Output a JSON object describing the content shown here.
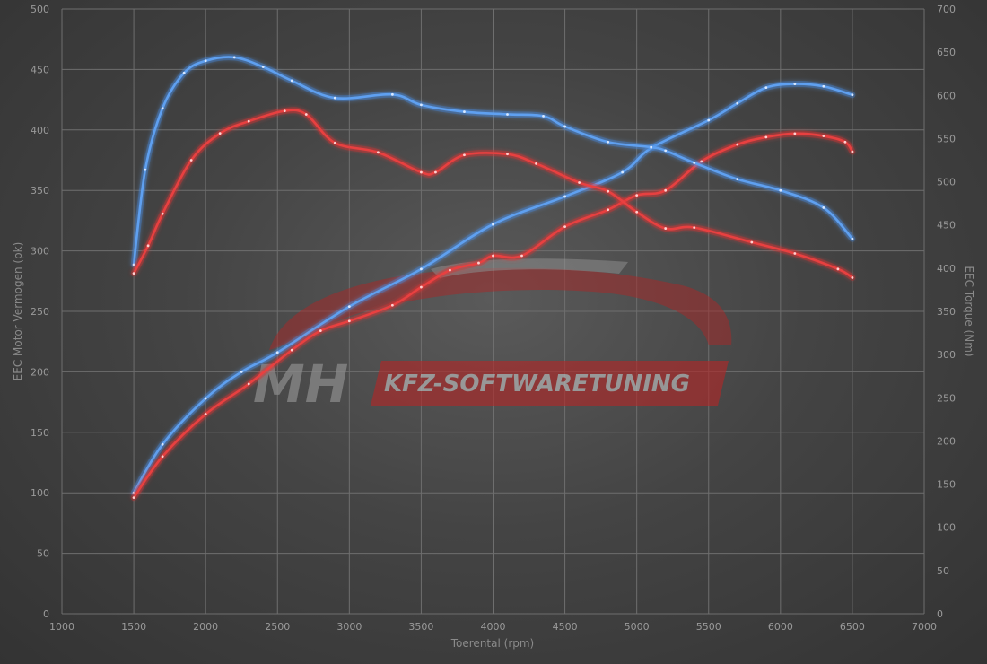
{
  "chart_data": {
    "type": "line",
    "xlabel": "Toerental (rpm)",
    "ylabel": "EEC Motor Vermogen (pk)",
    "ylabel_right": "EEC Torque (Nm)",
    "xlim": [
      1000,
      7000
    ],
    "ylim": [
      0,
      500
    ],
    "ylim_right": [
      0,
      700
    ],
    "x_ticks": [
      1000,
      1500,
      2000,
      2500,
      3000,
      3500,
      4000,
      4500,
      5000,
      5500,
      6000,
      6500,
      7000
    ],
    "y_ticks": [
      0,
      50,
      100,
      150,
      200,
      250,
      300,
      350,
      400,
      450,
      500
    ],
    "y_ticks_right": [
      0,
      50,
      100,
      150,
      200,
      250,
      300,
      350,
      400,
      450,
      500,
      550,
      600,
      650,
      700
    ],
    "grid": true,
    "series": [
      {
        "axis": "left",
        "color": "#3a7fd9",
        "points": [
          [
            1500,
            100
          ],
          [
            1700,
            140
          ],
          [
            2000,
            178
          ],
          [
            2250,
            200
          ],
          [
            2500,
            216
          ],
          [
            3000,
            254
          ],
          [
            3500,
            285
          ],
          [
            4000,
            322
          ],
          [
            4500,
            345
          ],
          [
            4900,
            365
          ],
          [
            5100,
            385
          ],
          [
            5500,
            408
          ],
          [
            5700,
            422
          ],
          [
            5900,
            435
          ],
          [
            6100,
            438
          ],
          [
            6300,
            436
          ],
          [
            6500,
            429
          ]
        ]
      },
      {
        "axis": "left",
        "color": "#d42a2a",
        "points": [
          [
            1500,
            96
          ],
          [
            1700,
            130
          ],
          [
            2000,
            165
          ],
          [
            2300,
            190
          ],
          [
            2600,
            218
          ],
          [
            2800,
            234
          ],
          [
            3000,
            242
          ],
          [
            3300,
            255
          ],
          [
            3500,
            270
          ],
          [
            3700,
            284
          ],
          [
            3900,
            290
          ],
          [
            4000,
            296
          ],
          [
            4200,
            296
          ],
          [
            4500,
            320
          ],
          [
            4800,
            334
          ],
          [
            5000,
            346
          ],
          [
            5200,
            350
          ],
          [
            5450,
            374
          ],
          [
            5700,
            388
          ],
          [
            5900,
            394
          ],
          [
            6100,
            397
          ],
          [
            6300,
            395
          ],
          [
            6450,
            390
          ],
          [
            6500,
            382
          ]
        ]
      },
      {
        "axis": "right",
        "color": "#3a7fd9",
        "points": [
          [
            1500,
            404
          ],
          [
            1580,
            514
          ],
          [
            1700,
            585
          ],
          [
            1850,
            626
          ],
          [
            2000,
            640
          ],
          [
            2200,
            644
          ],
          [
            2400,
            633
          ],
          [
            2600,
            617
          ],
          [
            2900,
            597
          ],
          [
            3300,
            601
          ],
          [
            3500,
            589
          ],
          [
            3800,
            581
          ],
          [
            4100,
            578
          ],
          [
            4350,
            576
          ],
          [
            4500,
            564
          ],
          [
            4800,
            546
          ],
          [
            5100,
            540
          ],
          [
            5200,
            536
          ],
          [
            5400,
            522
          ],
          [
            5700,
            503
          ],
          [
            6000,
            490
          ],
          [
            6300,
            470
          ],
          [
            6500,
            434
          ]
        ]
      },
      {
        "axis": "right",
        "color": "#d42a2a",
        "points": [
          [
            1500,
            394
          ],
          [
            1600,
            426
          ],
          [
            1700,
            463
          ],
          [
            1900,
            525
          ],
          [
            2100,
            556
          ],
          [
            2300,
            570
          ],
          [
            2550,
            582
          ],
          [
            2700,
            578
          ],
          [
            2900,
            545
          ],
          [
            3200,
            534
          ],
          [
            3500,
            511
          ],
          [
            3600,
            511
          ],
          [
            3800,
            531
          ],
          [
            4100,
            532
          ],
          [
            4300,
            521
          ],
          [
            4600,
            499
          ],
          [
            4800,
            489
          ],
          [
            5000,
            465
          ],
          [
            5200,
            446
          ],
          [
            5400,
            447
          ],
          [
            5800,
            430
          ],
          [
            6100,
            417
          ],
          [
            6400,
            399
          ],
          [
            6500,
            389
          ]
        ]
      }
    ]
  },
  "watermark": {
    "mh": "MH",
    "text": "KFZ-SOFTWARETUNING"
  }
}
